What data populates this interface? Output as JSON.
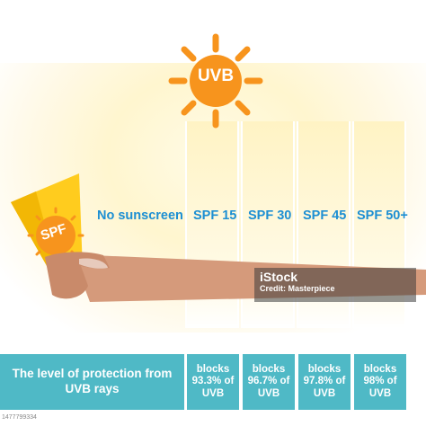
{
  "sun": {
    "label": "UVB",
    "color": "#f7941d"
  },
  "tube": {
    "label": "SPF",
    "color": "#ffcc1e"
  },
  "levels": [
    {
      "label": "No sunscreen"
    },
    {
      "label": "SPF 15"
    },
    {
      "label": "SPF 30"
    },
    {
      "label": "SPF 45"
    },
    {
      "label": "SPF 50+"
    }
  ],
  "protection": {
    "title": "The level of protection from UVB rays",
    "cells": [
      "blocks 93.3% of UVB",
      "blocks 96.7% of UVB",
      "blocks 97.8% of UVB",
      "blocks 98% of UVB"
    ],
    "color": "#4fb9c6"
  },
  "watermark": {
    "brand": "iStock",
    "credit": "Credit: Masterpiece"
  },
  "image_id": "1477799334",
  "accent_text_color": "#1d8fd3",
  "skin_color": "#d59a7b"
}
